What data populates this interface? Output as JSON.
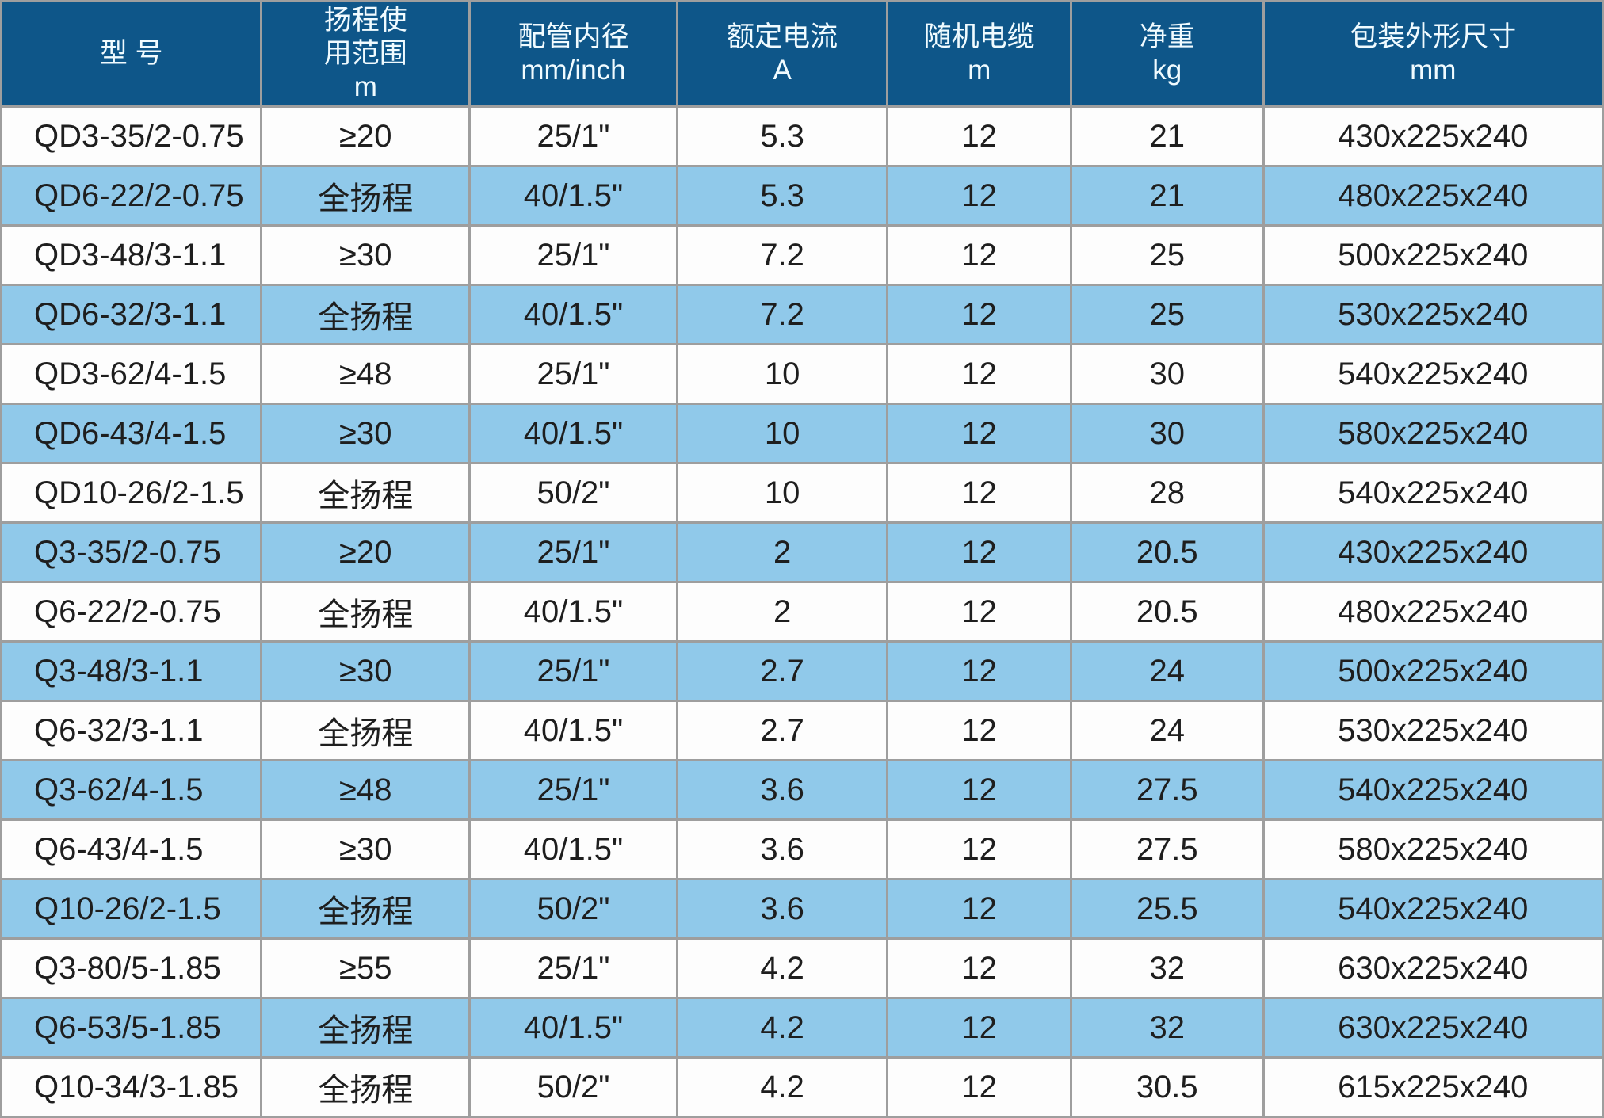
{
  "chart_data": {
    "type": "table",
    "title": "",
    "columns": [
      {
        "key": "model",
        "label_lines": [
          "型 号"
        ]
      },
      {
        "key": "head_range",
        "label_lines": [
          "扬程使",
          "用范围",
          "m"
        ]
      },
      {
        "key": "pipe_diameter",
        "label_lines": [
          "配管内径",
          "mm/inch"
        ]
      },
      {
        "key": "rated_current",
        "label_lines": [
          "额定电流",
          "A"
        ]
      },
      {
        "key": "cable_length",
        "label_lines": [
          "随机电缆",
          "m"
        ]
      },
      {
        "key": "net_weight",
        "label_lines": [
          "净重",
          "kg"
        ]
      },
      {
        "key": "package_size",
        "label_lines": [
          "包装外形尺寸",
          "mm"
        ]
      }
    ],
    "rows": [
      [
        "QD3-35/2-0.75",
        "≥20",
        "25/1\"",
        "5.3",
        "12",
        "21",
        "430x225x240"
      ],
      [
        "QD6-22/2-0.75",
        "全扬程",
        "40/1.5\"",
        "5.3",
        "12",
        "21",
        "480x225x240"
      ],
      [
        "QD3-48/3-1.1",
        "≥30",
        "25/1\"",
        "7.2",
        "12",
        "25",
        "500x225x240"
      ],
      [
        "QD6-32/3-1.1",
        "全扬程",
        "40/1.5\"",
        "7.2",
        "12",
        "25",
        "530x225x240"
      ],
      [
        "QD3-62/4-1.5",
        "≥48",
        "25/1\"",
        "10",
        "12",
        "30",
        "540x225x240"
      ],
      [
        "QD6-43/4-1.5",
        "≥30",
        "40/1.5\"",
        "10",
        "12",
        "30",
        "580x225x240"
      ],
      [
        "QD10-26/2-1.5",
        "全扬程",
        "50/2\"",
        "10",
        "12",
        "28",
        "540x225x240"
      ],
      [
        "Q3-35/2-0.75",
        "≥20",
        "25/1\"",
        "2",
        "12",
        "20.5",
        "430x225x240"
      ],
      [
        "Q6-22/2-0.75",
        "全扬程",
        "40/1.5\"",
        "2",
        "12",
        "20.5",
        "480x225x240"
      ],
      [
        "Q3-48/3-1.1",
        "≥30",
        "25/1\"",
        "2.7",
        "12",
        "24",
        "500x225x240"
      ],
      [
        "Q6-32/3-1.1",
        "全扬程",
        "40/1.5\"",
        "2.7",
        "12",
        "24",
        "530x225x240"
      ],
      [
        "Q3-62/4-1.5",
        "≥48",
        "25/1\"",
        "3.6",
        "12",
        "27.5",
        "540x225x240"
      ],
      [
        "Q6-43/4-1.5",
        "≥30",
        "40/1.5\"",
        "3.6",
        "12",
        "27.5",
        "580x225x240"
      ],
      [
        "Q10-26/2-1.5",
        "全扬程",
        "50/2\"",
        "3.6",
        "12",
        "25.5",
        "540x225x240"
      ],
      [
        "Q3-80/5-1.85",
        "≥55",
        "25/1\"",
        "4.2",
        "12",
        "32",
        "630x225x240"
      ],
      [
        "Q6-53/5-1.85",
        "全扬程",
        "40/1.5\"",
        "4.2",
        "12",
        "32",
        "630x225x240"
      ],
      [
        "Q10-34/3-1.85",
        "全扬程",
        "50/2\"",
        "4.2",
        "12",
        "30.5",
        "615x225x240"
      ]
    ],
    "layout": {
      "header_position": "top",
      "row_striping": "alternating white and light blue, starting white",
      "grid": true
    },
    "colors": {
      "header_bg": "#0e5689",
      "header_text": "#f0fbff",
      "row_white_bg": "#fdfdfd",
      "row_blue_bg": "#90c9ea",
      "border": "#9e9e9e",
      "body_text": "#1e1e1e"
    }
  }
}
